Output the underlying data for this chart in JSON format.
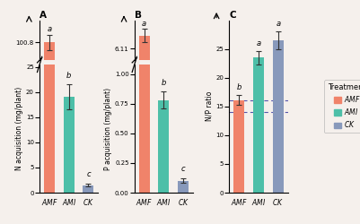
{
  "panel_A": {
    "title": "A",
    "ylabel": "N acquisition (mg/plant)",
    "categories": [
      "AMF",
      "AMI",
      "CK"
    ],
    "values": [
      100.79,
      19.0,
      1.5
    ],
    "errors": [
      2.5,
      2.5,
      0.3
    ],
    "letters": [
      "a",
      "b",
      "c"
    ],
    "colors": [
      "#F0836A",
      "#4DBFA8",
      "#8899BB"
    ],
    "yticks_lower": [
      0,
      5,
      10,
      15,
      20,
      25
    ],
    "yticks_upper": [
      100.79
    ],
    "ylim_lower": [
      0,
      25.5
    ],
    "ylim_upper": [
      95.0,
      108.0
    ]
  },
  "panel_B": {
    "title": "B",
    "ylabel": "P acquisition (mg/plant)",
    "categories": [
      "AMF",
      "AMI",
      "CK"
    ],
    "values": [
      6.4,
      0.78,
      0.1
    ],
    "errors": [
      0.15,
      0.07,
      0.02
    ],
    "letters": [
      "a",
      "b",
      "c"
    ],
    "colors": [
      "#F0836A",
      "#4DBFA8",
      "#8899BB"
    ],
    "yticks_lower": [
      0.0,
      0.25,
      0.5,
      0.75,
      1.0
    ],
    "yticks_upper": [
      6.11
    ],
    "ylim_lower": [
      0,
      1.08
    ],
    "ylim_upper": [
      5.85,
      6.75
    ]
  },
  "panel_C": {
    "title": "C",
    "ylabel": "N/P ratio",
    "categories": [
      "AMF",
      "AMI",
      "CK"
    ],
    "values": [
      16.1,
      23.5,
      26.5
    ],
    "errors": [
      0.9,
      1.2,
      1.5
    ],
    "letters": [
      "b",
      "a",
      "a"
    ],
    "colors": [
      "#F0836A",
      "#4DBFA8",
      "#8899BB"
    ],
    "ylim": [
      0,
      30
    ],
    "yticks": [
      0,
      5,
      10,
      15,
      20,
      25
    ],
    "hlines": [
      14,
      16
    ]
  },
  "legend": {
    "title": "Treatment",
    "labels": [
      "AMF",
      "AMI",
      "CK"
    ],
    "colors": [
      "#F0836A",
      "#4DBFA8",
      "#8899BB"
    ]
  },
  "bg_color": "#F5F0EC"
}
